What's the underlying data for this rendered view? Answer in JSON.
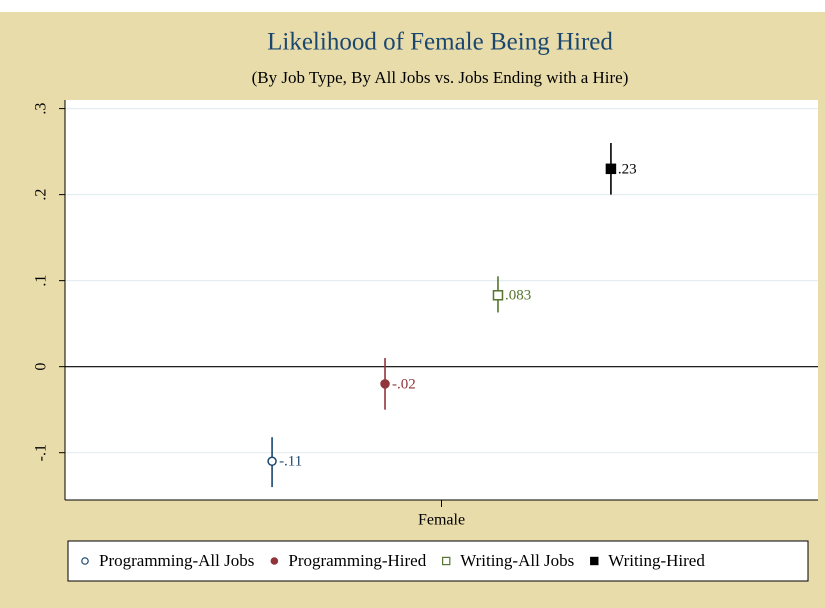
{
  "chart_data": {
    "type": "errorbar",
    "title": "Likelihood of Female Being Hired",
    "subtitle": "(By Job Type, By All Jobs vs. Jobs Ending with a Hire)",
    "categories": [
      "Female"
    ],
    "series": [
      {
        "name": "Programming-All Jobs",
        "color": "#1a476f",
        "marker": "hollow-circle",
        "values": [
          -0.11
        ],
        "value_labels": [
          "-.11"
        ],
        "lower": [
          -0.14
        ],
        "upper": [
          -0.082
        ]
      },
      {
        "name": "Programming-Hired",
        "color": "#90353b",
        "marker": "circle",
        "values": [
          -0.02
        ],
        "value_labels": [
          "-.02"
        ],
        "lower": [
          -0.05
        ],
        "upper": [
          0.01
        ]
      },
      {
        "name": "Writing-All Jobs",
        "color": "#55752f",
        "marker": "hollow-square",
        "values": [
          0.083
        ],
        "value_labels": [
          ".083"
        ],
        "lower": [
          0.063
        ],
        "upper": [
          0.105
        ]
      },
      {
        "name": "Writing-Hired",
        "color": "#000000",
        "marker": "square",
        "values": [
          0.23
        ],
        "value_labels": [
          ".23"
        ],
        "lower": [
          0.2
        ],
        "upper": [
          0.26
        ]
      }
    ],
    "ylim": [
      -0.155,
      0.31
    ],
    "yticks": [
      {
        "value": -0.1,
        "label": "-.1"
      },
      0,
      {
        "value": 0.1,
        "label": ".1"
      },
      {
        "value": 0.2,
        "label": ".2"
      },
      {
        "value": 0.3,
        "label": ".3"
      }
    ],
    "grid": true,
    "legend": "bottom"
  }
}
